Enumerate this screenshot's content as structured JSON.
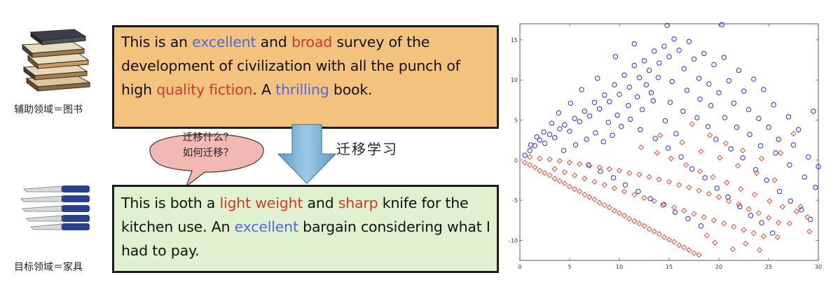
{
  "source": {
    "domain_label": "辅助领域＝图书",
    "icon": "books-icon",
    "review": [
      {
        "t": "This is an "
      },
      {
        "t": "excellent",
        "c": "blue"
      },
      {
        "t": " and "
      },
      {
        "t": "broad",
        "c": "red"
      },
      {
        "t": " survey of the development of civilization with all the punch of high "
      },
      {
        "t": "quality fiction",
        "c": "red"
      },
      {
        "t": ". A "
      },
      {
        "t": "thrilling",
        "c": "blue"
      },
      {
        "t": " book."
      }
    ]
  },
  "target": {
    "domain_label": "目标领域＝家具",
    "icon": "knives-icon",
    "review": [
      {
        "t": "This is both a "
      },
      {
        "t": "light weight",
        "c": "red"
      },
      {
        "t": " and "
      },
      {
        "t": "sharp",
        "c": "red"
      },
      {
        "t": " knife for the kitchen use. An "
      },
      {
        "t": "excellent",
        "c": "blue"
      },
      {
        "t": " bargain considering what I had to pay."
      }
    ]
  },
  "bubble": {
    "line1": "迁移什么？",
    "line2": "如何迁移？"
  },
  "transfer_label": "迁移学习",
  "colors": {
    "source_box": "#f3c37d",
    "target_box": "#dff1cf",
    "highlight_blue": "#5568d6",
    "highlight_red": "#cc3a28",
    "arrow": "#7ab3d3",
    "bubble": "#f2b9b3",
    "scatter_blue": "#2a2ad6",
    "scatter_red": "#e04a32"
  },
  "chart_data": {
    "type": "scatter",
    "title": "",
    "xlabel": "",
    "ylabel": "",
    "xlim": [
      0,
      30
    ],
    "ylim": [
      -12.5,
      17
    ],
    "x_ticks": [
      "0",
      "5",
      "10",
      "15",
      "20",
      "25",
      "30"
    ],
    "y_ticks": [
      "-10",
      "-5",
      "0",
      "5",
      "10",
      "15"
    ],
    "grid": false,
    "series": [
      {
        "marker": "circle",
        "color": "#2a2ad6",
        "points": [
          [
            0.5,
            0.6
          ],
          [
            1,
            1.2
          ],
          [
            1.5,
            1.8
          ],
          [
            2,
            2.5
          ],
          [
            2.5,
            2.1
          ],
          [
            3,
            3.2
          ],
          [
            3.5,
            2.8
          ],
          [
            4,
            3.9
          ],
          [
            4.5,
            4.4
          ],
          [
            5,
            3.6
          ],
          [
            5.5,
            5.2
          ],
          [
            6,
            4.8
          ],
          [
            6.5,
            6.1
          ],
          [
            7,
            5.5
          ],
          [
            7.5,
            7.2
          ],
          [
            8,
            6.4
          ],
          [
            8.5,
            8.1
          ],
          [
            9,
            7.3
          ],
          [
            9.5,
            9.4
          ],
          [
            10,
            8.2
          ],
          [
            10.5,
            10.6
          ],
          [
            11,
            9.1
          ],
          [
            11.5,
            11.8
          ],
          [
            12,
            10.3
          ],
          [
            12.5,
            12.4
          ],
          [
            13,
            11.2
          ],
          [
            13.5,
            13.6
          ],
          [
            14,
            12.1
          ],
          [
            14.5,
            14.2
          ],
          [
            15,
            12.9
          ],
          [
            15.5,
            15.1
          ],
          [
            16,
            13.7
          ],
          [
            16.5,
            11.4
          ],
          [
            17,
            14.8
          ],
          [
            17.5,
            12.6
          ],
          [
            18,
            10.2
          ],
          [
            18.5,
            13.3
          ],
          [
            19,
            9.5
          ],
          [
            19.5,
            11.9
          ],
          [
            20,
            8.4
          ],
          [
            20.5,
            12.8
          ],
          [
            21,
            9.9
          ],
          [
            21.5,
            7.1
          ],
          [
            22,
            11.2
          ],
          [
            22.5,
            8.6
          ],
          [
            23,
            6.3
          ],
          [
            23.5,
            10.1
          ],
          [
            24,
            5.2
          ],
          [
            24.5,
            8.8
          ],
          [
            25,
            4.1
          ],
          [
            25.5,
            6.9
          ],
          [
            26,
            2.6
          ],
          [
            27,
            5.4
          ],
          [
            27.5,
            1.9
          ],
          [
            28,
            3.8
          ],
          [
            29,
            0.4
          ],
          [
            29.5,
            6.1
          ],
          [
            30,
            -0.8
          ],
          [
            14.8,
            16.8
          ],
          [
            20.3,
            16.9
          ],
          [
            11.5,
            14.5
          ],
          [
            9.6,
            12.9
          ],
          [
            7.8,
            10.2
          ],
          [
            6.2,
            8.8
          ],
          [
            5.1,
            7.1
          ],
          [
            3.9,
            5.9
          ],
          [
            3.2,
            4.6
          ],
          [
            2.4,
            3.5
          ],
          [
            1.7,
            2.9
          ],
          [
            1.1,
            1.9
          ],
          [
            13.2,
            8.4
          ],
          [
            15.1,
            7.2
          ],
          [
            16.4,
            6.1
          ],
          [
            17.8,
            5.3
          ],
          [
            18.9,
            4.2
          ],
          [
            19.7,
            2.6
          ],
          [
            21.2,
            1.4
          ],
          [
            22.4,
            0.3
          ],
          [
            23.7,
            -1.2
          ],
          [
            24.8,
            -2.5
          ],
          [
            26.1,
            -3.9
          ],
          [
            27.2,
            -5.1
          ],
          [
            28.3,
            -6.2
          ],
          [
            29.2,
            -7.4
          ],
          [
            12.1,
            3.8
          ],
          [
            13.6,
            2.7
          ],
          [
            14.9,
            1.5
          ],
          [
            16.2,
            0.4
          ],
          [
            17.3,
            -1.1
          ],
          [
            18.6,
            -2.2
          ],
          [
            19.8,
            -3.5
          ],
          [
            20.9,
            -4.6
          ],
          [
            22.1,
            -5.8
          ],
          [
            23.2,
            -6.9
          ],
          [
            24.3,
            -7.8
          ],
          [
            25.4,
            -9.1
          ],
          [
            8.4,
            2.3
          ],
          [
            9.3,
            3.1
          ],
          [
            10.2,
            4.2
          ],
          [
            11.1,
            5.1
          ],
          [
            12.3,
            6.3
          ],
          [
            13.4,
            7.4
          ],
          [
            14.6,
            4.9
          ],
          [
            15.7,
            3.3
          ],
          [
            4.4,
            1.2
          ],
          [
            5.6,
            1.9
          ],
          [
            6.7,
            2.6
          ],
          [
            7.6,
            3.4
          ],
          [
            8.9,
            4.7
          ],
          [
            9.8,
            5.6
          ],
          [
            10.9,
            6.8
          ],
          [
            11.8,
            7.9
          ],
          [
            12.7,
            9.4
          ],
          [
            13.9,
            10.3
          ],
          [
            15.3,
            9.8
          ],
          [
            16.8,
            8.7
          ],
          [
            18.1,
            7.6
          ],
          [
            19.2,
            6.8
          ],
          [
            20.6,
            5.3
          ],
          [
            21.8,
            4.1
          ],
          [
            23.1,
            3.2
          ],
          [
            24.2,
            1.8
          ],
          [
            25.7,
            0.9
          ],
          [
            27.1,
            -0.6
          ],
          [
            28.6,
            -2.1
          ],
          [
            29.7,
            -3.4
          ],
          [
            6.9,
            -0.6
          ],
          [
            8.1,
            -1.4
          ],
          [
            9.4,
            -2.2
          ],
          [
            10.6,
            -3.1
          ],
          [
            11.9,
            -3.9
          ],
          [
            13.1,
            -4.8
          ],
          [
            14.4,
            -5.6
          ],
          [
            15.6,
            -6.5
          ],
          [
            16.9,
            -7.3
          ],
          [
            18.2,
            -8.2
          ]
        ]
      },
      {
        "marker": "diamond",
        "color": "#e04a32",
        "points": [
          [
            0.5,
            -0.3
          ],
          [
            1,
            -0.6
          ],
          [
            1.5,
            -0.9
          ],
          [
            2,
            -1.3
          ],
          [
            2.5,
            -1.6
          ],
          [
            3,
            -1.9
          ],
          [
            3.5,
            -2.3
          ],
          [
            4,
            -2.6
          ],
          [
            4.5,
            -2.9
          ],
          [
            5,
            -3.3
          ],
          [
            5.5,
            -3.6
          ],
          [
            6,
            -3.9
          ],
          [
            6.5,
            -4.3
          ],
          [
            7,
            -4.6
          ],
          [
            7.5,
            -4.9
          ],
          [
            8,
            -5.3
          ],
          [
            8.5,
            -5.6
          ],
          [
            9,
            -5.9
          ],
          [
            9.5,
            -6.3
          ],
          [
            10,
            -6.6
          ],
          [
            10.5,
            -6.9
          ],
          [
            11,
            -7.3
          ],
          [
            11.5,
            -7.6
          ],
          [
            12,
            -7.9
          ],
          [
            12.5,
            -8.2
          ],
          [
            13,
            -8.6
          ],
          [
            13.5,
            -8.9
          ],
          [
            14,
            -9.2
          ],
          [
            14.5,
            -9.6
          ],
          [
            15,
            -9.9
          ],
          [
            15.5,
            -10.2
          ],
          [
            16,
            -10.6
          ],
          [
            16.5,
            -10.9
          ],
          [
            17,
            -11.2
          ],
          [
            17.5,
            -11.6
          ],
          [
            18,
            -11.8
          ],
          [
            1,
            0.4
          ],
          [
            2,
            0.2
          ],
          [
            3,
            0.1
          ],
          [
            4,
            -0.1
          ],
          [
            5,
            -0.3
          ],
          [
            6,
            -0.5
          ],
          [
            7,
            -0.7
          ],
          [
            8,
            -0.9
          ],
          [
            9,
            -1.1
          ],
          [
            10,
            -1.3
          ],
          [
            11,
            -1.6
          ],
          [
            12,
            -1.8
          ],
          [
            13,
            -2.1
          ],
          [
            14,
            -2.4
          ],
          [
            15,
            -2.7
          ],
          [
            16,
            -3.1
          ],
          [
            17,
            -3.4
          ],
          [
            18,
            -3.8
          ],
          [
            19,
            -4.2
          ],
          [
            20,
            -4.6
          ],
          [
            21,
            -5.1
          ],
          [
            22,
            -5.5
          ],
          [
            23,
            -6.1
          ],
          [
            24,
            -6.6
          ],
          [
            25,
            -7.2
          ],
          [
            26,
            -7.8
          ],
          [
            3.5,
            -1.1
          ],
          [
            4.5,
            -1.5
          ],
          [
            5.5,
            -1.9
          ],
          [
            6.5,
            -2.3
          ],
          [
            7.5,
            -2.7
          ],
          [
            8.5,
            -3.1
          ],
          [
            9.5,
            -3.5
          ],
          [
            10.5,
            -3.9
          ],
          [
            11.5,
            -4.3
          ],
          [
            12.5,
            -4.7
          ],
          [
            13.5,
            -5.1
          ],
          [
            14.5,
            -5.5
          ],
          [
            15.5,
            -5.9
          ],
          [
            16.5,
            -6.3
          ],
          [
            17.5,
            -6.7
          ],
          [
            18.5,
            -7.1
          ],
          [
            19.5,
            -7.5
          ],
          [
            20.5,
            -7.9
          ],
          [
            21.5,
            -8.3
          ],
          [
            22.5,
            -8.7
          ],
          [
            23.5,
            -9.1
          ],
          [
            24.5,
            -9.5
          ],
          [
            12.2,
            1.6
          ],
          [
            13.8,
            0.9
          ],
          [
            15.2,
            0.2
          ],
          [
            16.7,
            -0.6
          ],
          [
            18.1,
            -1.4
          ],
          [
            19.4,
            -2.1
          ],
          [
            20.8,
            -2.8
          ],
          [
            22.2,
            -3.6
          ],
          [
            23.6,
            -4.3
          ],
          [
            25.1,
            -5.1
          ],
          [
            26.4,
            -5.8
          ],
          [
            27.8,
            -6.4
          ],
          [
            28.9,
            -7.1
          ],
          [
            14.1,
            3.1
          ],
          [
            16.3,
            2.2
          ],
          [
            18.2,
            1.1
          ],
          [
            20.1,
            0.3
          ],
          [
            21.9,
            -0.7
          ],
          [
            23.8,
            -1.6
          ],
          [
            25.6,
            -2.5
          ],
          [
            27.5,
            3.3
          ],
          [
            26.2,
            0.9
          ],
          [
            19.6,
            -10.3
          ],
          [
            21.4,
            -11.1
          ],
          [
            22.7,
            -10.4
          ],
          [
            24.1,
            -11.2
          ],
          [
            25.9,
            -9.6
          ],
          [
            27.1,
            -7.9
          ],
          [
            28.2,
            -5.8
          ],
          [
            29.1,
            -8.9
          ],
          [
            17.3,
            4.5
          ],
          [
            19.1,
            3.1
          ],
          [
            20.7,
            2.1
          ],
          [
            22.4,
            1.2
          ],
          [
            24.3,
            0.2
          ],
          [
            18.8,
            -9.4
          ]
        ]
      }
    ]
  }
}
